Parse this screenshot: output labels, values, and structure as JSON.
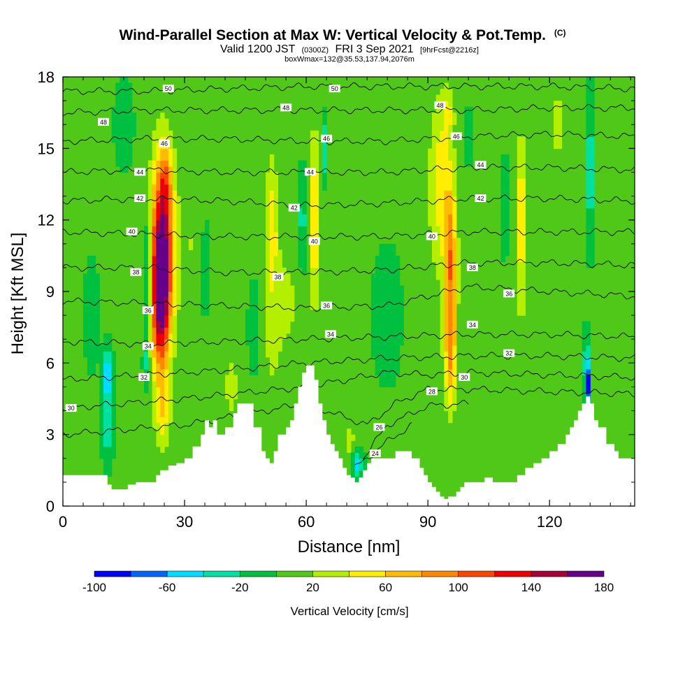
{
  "chart_data": {
    "type": "heatmap",
    "title": "Wind-Parallel Section at Max W: Vertical Velocity & Pot.Temp.",
    "title_mark": "(C)",
    "subtitle_main": "Valid 1200 JST",
    "subtitle_utc": "(0300Z)",
    "subtitle_date": "FRI 3 Sep 2021",
    "subtitle_fcst": "[9hrFcst@2216z]",
    "subtitle2": "boxWmax=132@35.53,137.94,2076m",
    "xlabel": "Distance [nm]",
    "ylabel": "Height [Kft MSL]",
    "xlim": [
      0,
      141
    ],
    "ylim": [
      0,
      18
    ],
    "x_ticks": [
      0,
      30,
      60,
      90,
      120
    ],
    "x_tick_labels": [
      "0",
      "30",
      "60",
      "90",
      "120"
    ],
    "y_ticks": [
      0,
      3,
      6,
      9,
      12,
      15,
      18
    ],
    "y_tick_labels": [
      "0",
      "3",
      "6",
      "9",
      "12",
      "15",
      "18"
    ],
    "colorbar": {
      "label": "Vertical Velocity [cm/s]",
      "levels": [
        -100,
        -80,
        -60,
        -40,
        -20,
        0,
        20,
        40,
        60,
        80,
        100,
        120,
        140,
        160,
        180
      ],
      "tick_values": [
        -100,
        -60,
        -20,
        20,
        60,
        100,
        140,
        180
      ],
      "tick_labels": [
        "-100",
        "-60",
        "-20",
        "20",
        "60",
        "100",
        "140",
        "180"
      ],
      "colors": [
        "#0000ff",
        "#0066ff",
        "#00ddff",
        "#00e0a0",
        "#00c040",
        "#50c818",
        "#b4ee00",
        "#ffee00",
        "#ffbb00",
        "#ff8800",
        "#ff4400",
        "#ee0000",
        "#a80038",
        "#660088"
      ]
    },
    "background_w": 5,
    "terrain_kft": [
      [
        0,
        1.3
      ],
      [
        5,
        1.3
      ],
      [
        10,
        1.3
      ],
      [
        11,
        0.9
      ],
      [
        12,
        0.7
      ],
      [
        14,
        0.7
      ],
      [
        16,
        0.9
      ],
      [
        18,
        1.0
      ],
      [
        20,
        1.0
      ],
      [
        22,
        1.0
      ],
      [
        23,
        1.3
      ],
      [
        24,
        1.5
      ],
      [
        26,
        1.7
      ],
      [
        28,
        1.8
      ],
      [
        30,
        2.0
      ],
      [
        32,
        2.5
      ],
      [
        34,
        3.0
      ],
      [
        35,
        3.6
      ],
      [
        36,
        3.3
      ],
      [
        37,
        3.6
      ],
      [
        38,
        3.0
      ],
      [
        39,
        3.0
      ],
      [
        40,
        3.3
      ],
      [
        42,
        3.9
      ],
      [
        43,
        4.3
      ],
      [
        45,
        4.3
      ],
      [
        47,
        3.3
      ],
      [
        49,
        2.3
      ],
      [
        50,
        2.0
      ],
      [
        51,
        1.8
      ],
      [
        52,
        2.3
      ],
      [
        53,
        3.0
      ],
      [
        55,
        3.3
      ],
      [
        56,
        3.6
      ],
      [
        57,
        4.3
      ],
      [
        58,
        5.0
      ],
      [
        59,
        5.6
      ],
      [
        60,
        5.9
      ],
      [
        61,
        5.9
      ],
      [
        62,
        5.3
      ],
      [
        63,
        4.3
      ],
      [
        64,
        3.6
      ],
      [
        65,
        3.0
      ],
      [
        66,
        2.6
      ],
      [
        67,
        2.3
      ],
      [
        68,
        2.0
      ],
      [
        69,
        1.6
      ],
      [
        70,
        1.3
      ],
      [
        71,
        1.2
      ],
      [
        72,
        1.0
      ],
      [
        73,
        1.2
      ],
      [
        74,
        1.5
      ],
      [
        75,
        1.8
      ],
      [
        76,
        2.0
      ],
      [
        78,
        2.0
      ],
      [
        80,
        2.0
      ],
      [
        82,
        2.3
      ],
      [
        84,
        2.3
      ],
      [
        86,
        2.0
      ],
      [
        88,
        1.6
      ],
      [
        89,
        1.3
      ],
      [
        90,
        1.0
      ],
      [
        91,
        0.8
      ],
      [
        92,
        0.6
      ],
      [
        93,
        0.4
      ],
      [
        94,
        0.3
      ],
      [
        95,
        0.4
      ],
      [
        96,
        0.4
      ],
      [
        97,
        0.6
      ],
      [
        98,
        0.8
      ],
      [
        99,
        1.0
      ],
      [
        100,
        1.0
      ],
      [
        102,
        1.0
      ],
      [
        104,
        1.2
      ],
      [
        106,
        1.0
      ],
      [
        108,
        1.0
      ],
      [
        110,
        1.0
      ],
      [
        112,
        1.3
      ],
      [
        114,
        1.6
      ],
      [
        116,
        1.8
      ],
      [
        118,
        2.0
      ],
      [
        120,
        2.3
      ],
      [
        122,
        2.6
      ],
      [
        124,
        3.0
      ],
      [
        125,
        3.3
      ],
      [
        126,
        3.6
      ],
      [
        127,
        4.0
      ],
      [
        128,
        4.3
      ],
      [
        129,
        4.6
      ],
      [
        130,
        4.3
      ],
      [
        131,
        3.6
      ],
      [
        132,
        3.3
      ],
      [
        134,
        2.6
      ],
      [
        136,
        2.3
      ],
      [
        137,
        2.0
      ],
      [
        138,
        2.0
      ],
      [
        139,
        2.0
      ],
      [
        140,
        2.0
      ],
      [
        141,
        2.0
      ]
    ],
    "vertical_velocity_features": [
      {
        "x": 24.5,
        "z": 10.5,
        "half_width": 2.6,
        "half_height": 3.8,
        "w": 185
      },
      {
        "x": 23.8,
        "z": 8.0,
        "half_width": 2.0,
        "half_height": 2.5,
        "w": 70
      },
      {
        "x": 24.5,
        "z": 4.0,
        "half_width": 1.8,
        "half_height": 1.5,
        "w": 50
      },
      {
        "x": 25.5,
        "z": 13.8,
        "half_width": 1.6,
        "half_height": 1.2,
        "w": 40
      },
      {
        "x": 20.8,
        "z": 9.5,
        "half_width": 0.8,
        "half_height": 2.5,
        "w": -45
      },
      {
        "x": 20.5,
        "z": 6.0,
        "half_width": 0.8,
        "half_height": 1.0,
        "w": -25
      },
      {
        "x": 11.0,
        "z": 5.5,
        "half_width": 1.1,
        "half_height": 1.1,
        "w": -65
      },
      {
        "x": 11.0,
        "z": 3.2,
        "half_width": 1.4,
        "half_height": 1.4,
        "w": -30
      },
      {
        "x": 31.5,
        "z": 11.0,
        "half_width": 2.8,
        "half_height": 3.5,
        "w": 20
      },
      {
        "x": 35.0,
        "z": 10.0,
        "half_width": 0.7,
        "half_height": 2.0,
        "w": -25
      },
      {
        "x": 41.5,
        "z": 5.0,
        "half_width": 1.5,
        "half_height": 1.2,
        "w": 35
      },
      {
        "x": 51.5,
        "z": 11.5,
        "half_width": 1.5,
        "half_height": 3.0,
        "w": 55
      },
      {
        "x": 51.5,
        "z": 6.5,
        "half_width": 2.0,
        "half_height": 2.0,
        "w": 20
      },
      {
        "x": 62.0,
        "z": 12.0,
        "half_width": 1.3,
        "half_height": 3.5,
        "w": 60
      },
      {
        "x": 64.5,
        "z": 15.0,
        "half_width": 0.6,
        "half_height": 1.2,
        "w": -40
      },
      {
        "x": 59.0,
        "z": 12.0,
        "half_width": 1.0,
        "half_height": 2.0,
        "w": -30
      },
      {
        "x": 47.0,
        "z": 7.5,
        "half_width": 1.2,
        "half_height": 1.5,
        "w": -25
      },
      {
        "x": 55.0,
        "z": 8.5,
        "half_width": 3.5,
        "half_height": 2.5,
        "w": 25
      },
      {
        "x": 72.5,
        "z": 1.8,
        "half_width": 1.4,
        "half_height": 0.7,
        "w": -55
      },
      {
        "x": 71.0,
        "z": 2.5,
        "half_width": 2.0,
        "half_height": 1.0,
        "w": 30
      },
      {
        "x": 80.0,
        "z": 8.0,
        "half_width": 4.0,
        "half_height": 3.0,
        "w": -10
      },
      {
        "x": 93.0,
        "z": 13.5,
        "half_width": 2.6,
        "half_height": 3.5,
        "w": 50
      },
      {
        "x": 95.5,
        "z": 10.0,
        "half_width": 1.5,
        "half_height": 3.5,
        "w": 95
      },
      {
        "x": 95.5,
        "z": 6.0,
        "half_width": 1.5,
        "half_height": 2.0,
        "w": 60
      },
      {
        "x": 95.0,
        "z": 16.5,
        "half_width": 1.4,
        "half_height": 1.0,
        "w": 35
      },
      {
        "x": 100.0,
        "z": 15.5,
        "half_width": 0.5,
        "half_height": 1.2,
        "w": -30
      },
      {
        "x": 88.0,
        "z": 8.0,
        "half_width": 3.0,
        "half_height": 3.0,
        "w": 15
      },
      {
        "x": 113.0,
        "z": 12.5,
        "half_width": 1.3,
        "half_height": 3.0,
        "w": 55
      },
      {
        "x": 113.0,
        "z": 9.0,
        "half_width": 2.5,
        "half_height": 2.0,
        "w": 20
      },
      {
        "x": 109.0,
        "z": 12.5,
        "half_width": 0.8,
        "half_height": 2.0,
        "w": -20
      },
      {
        "x": 122.0,
        "z": 16.0,
        "half_width": 1.0,
        "half_height": 1.2,
        "w": 40
      },
      {
        "x": 122.5,
        "z": 9.0,
        "half_width": 1.5,
        "half_height": 2.0,
        "w": 15
      },
      {
        "x": 129.3,
        "z": 5.0,
        "half_width": 0.5,
        "half_height": 1.0,
        "w": -100
      },
      {
        "x": 129.0,
        "z": 6.2,
        "half_width": 0.6,
        "half_height": 1.2,
        "w": -45
      },
      {
        "x": 130.0,
        "z": 14.0,
        "half_width": 0.9,
        "half_height": 3.0,
        "w": -40
      },
      {
        "x": 135.0,
        "z": 8.0,
        "half_width": 2.5,
        "half_height": 3.0,
        "w": 20
      },
      {
        "x": 3.0,
        "z": 15.0,
        "half_width": 2.5,
        "half_height": 2.5,
        "w": 20
      },
      {
        "x": 15.0,
        "z": 16.0,
        "half_width": 2.5,
        "half_height": 2.0,
        "w": -10
      },
      {
        "x": 7.0,
        "z": 8.0,
        "half_width": 2.0,
        "half_height": 2.5,
        "w": -10
      }
    ],
    "theta_isentrope_heights": [
      {
        "theta": 24,
        "x": [
          72,
          80,
          86
        ],
        "z": [
          1.6,
          2.7,
          3.4
        ]
      },
      {
        "theta": 26,
        "x": [
          74,
          80,
          90,
          100
        ],
        "z": [
          2.0,
          3.4,
          4.2,
          4.3
        ]
      },
      {
        "theta": 28,
        "x": [
          0,
          30,
          60,
          75,
          82,
          90,
          100,
          141
        ],
        "z": [
          3.0,
          3.4,
          4.3,
          3.4,
          4.3,
          4.9,
          4.9,
          4.7
        ]
      },
      {
        "theta": 30,
        "x": [
          0,
          30,
          60,
          80,
          90,
          100,
          141
        ],
        "z": [
          4.1,
          4.5,
          5.0,
          5.6,
          5.5,
          5.6,
          5.4
        ]
      },
      {
        "theta": 32,
        "x": [
          0,
          20,
          40,
          60,
          80,
          100,
          120,
          141
        ],
        "z": [
          5.3,
          5.5,
          5.7,
          6.0,
          6.2,
          6.3,
          6.3,
          6.2
        ]
      },
      {
        "theta": 34,
        "x": [
          0,
          20,
          40,
          60,
          80,
          100,
          120,
          141
        ],
        "z": [
          6.9,
          6.8,
          6.9,
          7.0,
          7.1,
          7.2,
          7.2,
          7.1
        ]
      },
      {
        "theta": 36,
        "x": [
          0,
          20,
          40,
          60,
          80,
          100,
          120,
          141
        ],
        "z": [
          8.6,
          8.5,
          8.4,
          8.3,
          8.4,
          9.2,
          9.0,
          8.8
        ]
      },
      {
        "theta": 38,
        "x": [
          0,
          20,
          40,
          60,
          80,
          100,
          120,
          141
        ],
        "z": [
          10.0,
          10.0,
          9.8,
          9.8,
          9.9,
          10.2,
          10.2,
          10.1
        ]
      },
      {
        "theta": 40,
        "x": [
          0,
          20,
          40,
          60,
          80,
          100,
          120,
          141
        ],
        "z": [
          11.5,
          11.4,
          11.3,
          11.3,
          11.3,
          11.5,
          11.5,
          11.5
        ]
      },
      {
        "theta": 42,
        "x": [
          0,
          20,
          40,
          60,
          80,
          100,
          120,
          141
        ],
        "z": [
          12.8,
          12.9,
          12.8,
          12.6,
          12.7,
          12.9,
          12.9,
          12.8
        ]
      },
      {
        "theta": 44,
        "x": [
          0,
          20,
          40,
          60,
          80,
          100,
          120,
          141
        ],
        "z": [
          14.0,
          14.1,
          14.0,
          14.0,
          14.0,
          14.2,
          14.2,
          14.1
        ]
      },
      {
        "theta": 46,
        "x": [
          0,
          20,
          40,
          60,
          80,
          100,
          120,
          141
        ],
        "z": [
          15.3,
          15.4,
          15.4,
          15.3,
          15.3,
          15.5,
          15.6,
          15.5
        ]
      },
      {
        "theta": 48,
        "x": [
          0,
          20,
          40,
          60,
          80,
          100,
          120,
          141
        ],
        "z": [
          16.5,
          16.6,
          16.6,
          16.6,
          16.6,
          16.6,
          16.7,
          16.7
        ]
      },
      {
        "theta": 50,
        "x": [
          0,
          20,
          40,
          60,
          80,
          100,
          120,
          141
        ],
        "z": [
          17.4,
          17.4,
          17.5,
          17.6,
          17.6,
          17.6,
          17.6,
          17.5
        ]
      }
    ],
    "contour_labels": [
      {
        "text": "50",
        "x": 26,
        "z": 17.5
      },
      {
        "text": "50",
        "x": 67,
        "z": 17.5
      },
      {
        "text": "48",
        "x": 10,
        "z": 16.1
      },
      {
        "text": "48",
        "x": 55,
        "z": 16.7
      },
      {
        "text": "48",
        "x": 93,
        "z": 16.8
      },
      {
        "text": "46",
        "x": 25,
        "z": 15.2
      },
      {
        "text": "46",
        "x": 65,
        "z": 15.4
      },
      {
        "text": "46",
        "x": 97,
        "z": 15.5
      },
      {
        "text": "44",
        "x": 19,
        "z": 14.0
      },
      {
        "text": "44",
        "x": 61,
        "z": 14.0
      },
      {
        "text": "44",
        "x": 103,
        "z": 14.3
      },
      {
        "text": "42",
        "x": 19,
        "z": 12.9
      },
      {
        "text": "42",
        "x": 57,
        "z": 12.5
      },
      {
        "text": "42",
        "x": 103,
        "z": 12.9
      },
      {
        "text": "40",
        "x": 17,
        "z": 11.5
      },
      {
        "text": "40",
        "x": 62,
        "z": 11.1
      },
      {
        "text": "40",
        "x": 91,
        "z": 11.3
      },
      {
        "text": "38",
        "x": 18,
        "z": 9.8
      },
      {
        "text": "38",
        "x": 53,
        "z": 9.6
      },
      {
        "text": "38",
        "x": 101,
        "z": 10.0
      },
      {
        "text": "36",
        "x": 21,
        "z": 8.2
      },
      {
        "text": "36",
        "x": 65,
        "z": 8.4
      },
      {
        "text": "36",
        "x": 110,
        "z": 8.9
      },
      {
        "text": "34",
        "x": 21,
        "z": 6.7
      },
      {
        "text": "34",
        "x": 66,
        "z": 7.2
      },
      {
        "text": "34",
        "x": 101,
        "z": 7.6
      },
      {
        "text": "32",
        "x": 20,
        "z": 5.4
      },
      {
        "text": "32",
        "x": 110,
        "z": 6.4
      },
      {
        "text": "30",
        "x": 2,
        "z": 4.1
      },
      {
        "text": "30",
        "x": 99,
        "z": 5.4
      },
      {
        "text": "28",
        "x": 91,
        "z": 4.8
      },
      {
        "text": "26",
        "x": 78,
        "z": 3.3
      },
      {
        "text": "24",
        "x": 77,
        "z": 2.2
      }
    ]
  }
}
